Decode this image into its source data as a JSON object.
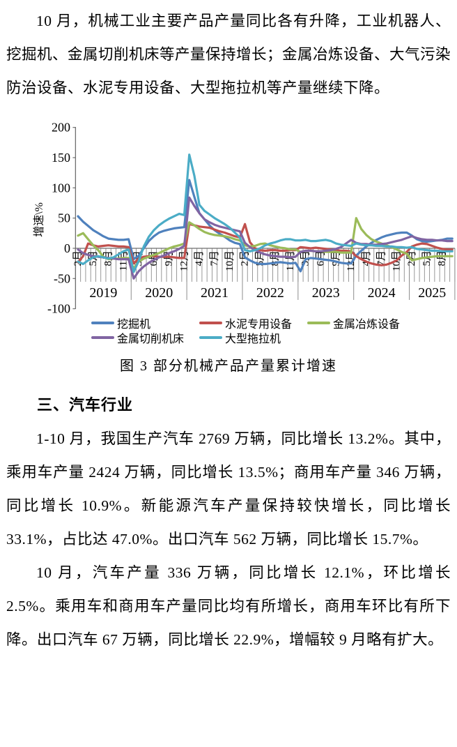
{
  "doc": {
    "paragraph1": "10 月，机械工业主要产品产量同比各有升降，工业机器人、挖掘机、金属切削机床等产量保持增长；金属冶炼设备、大气污染防治设备、水泥专用设备、大型拖拉机等产量继续下降。",
    "figure_caption": "图 3  部分机械产品产量累计增速",
    "section_heading": "三、汽车行业",
    "paragraph2": "1-10 月，我国生产汽车 2769 万辆，同比增长 13.2%。其中，乘用车产量 2424 万辆，同比增长 13.5%；商用车产量 346 万辆，同比增长 10.9%。新能源汽车产量保持较快增长，同比增长 33.1%，占比达 47.0%。出口汽车 562 万辆，同比增长 15.7%。",
    "paragraph3": "10 月，汽车产量 336 万辆，同比增长 12.1%，环比增长 2.5%。乘用车和商用车产量同比均有所增长，商用车环比有所下降。出口汽车 67 万辆，同比增长 22.9%，增幅较 9 月略有扩大。"
  },
  "chart_data": {
    "type": "line",
    "title": "图 3 部分机械产品产量累计增速",
    "ylabel": "增速\\%",
    "ylim": [
      -100,
      200
    ],
    "yticks": [
      200,
      150,
      100,
      50,
      0,
      -50,
      -100
    ],
    "grid": false,
    "legend_position": "bottom",
    "x_unit": "累计月度（每年2月–12月，2025年至10月）",
    "years": [
      {
        "label": "2019",
        "start": 0,
        "count": 11
      },
      {
        "label": "2020",
        "start": 11,
        "count": 11
      },
      {
        "label": "2021",
        "start": 22,
        "count": 11
      },
      {
        "label": "2022",
        "start": 33,
        "count": 11
      },
      {
        "label": "2023",
        "start": 44,
        "count": 11
      },
      {
        "label": "2024",
        "start": 55,
        "count": 11
      },
      {
        "label": "2025",
        "start": 66,
        "count": 9
      }
    ],
    "month_tick_labels": [
      {
        "index": 0,
        "label": "2月"
      },
      {
        "index": 3,
        "label": "5月"
      },
      {
        "index": 6,
        "label": "8月"
      },
      {
        "index": 9,
        "label": "11月"
      },
      {
        "index": 12,
        "label": "3月"
      },
      {
        "index": 15,
        "label": "6月"
      },
      {
        "index": 18,
        "label": "9月"
      },
      {
        "index": 21,
        "label": "12月"
      },
      {
        "index": 24,
        "label": "4月"
      },
      {
        "index": 27,
        "label": "7月"
      },
      {
        "index": 30,
        "label": "10月"
      },
      {
        "index": 33,
        "label": "2月"
      },
      {
        "index": 36,
        "label": "5月"
      },
      {
        "index": 39,
        "label": "8月"
      },
      {
        "index": 42,
        "label": "11月"
      },
      {
        "index": 45,
        "label": "3月"
      },
      {
        "index": 48,
        "label": "6月"
      },
      {
        "index": 51,
        "label": "9月"
      },
      {
        "index": 54,
        "label": "12月"
      },
      {
        "index": 57,
        "label": "4月"
      },
      {
        "index": 60,
        "label": "7月"
      },
      {
        "index": 63,
        "label": "10月"
      },
      {
        "index": 66,
        "label": "2月"
      },
      {
        "index": 69,
        "label": "5月"
      },
      {
        "index": 72,
        "label": "8月"
      }
    ],
    "series": [
      {
        "name": "挖掘机",
        "key": "excavator",
        "color": "#4F81BD",
        "values": [
          53,
          44,
          37,
          30,
          25,
          20,
          16,
          15,
          14,
          14,
          15,
          -18,
          -12,
          0,
          12,
          20,
          26,
          29,
          31,
          33,
          34,
          35,
          113,
          85,
          58,
          48,
          38,
          30,
          24,
          19,
          13,
          9,
          7,
          -15,
          -20,
          -24,
          -26,
          -26,
          -25,
          -24,
          -23,
          -24,
          -25,
          -24,
          -38,
          -18,
          -16,
          -17,
          -18,
          -19,
          -20,
          -22,
          -24,
          -25,
          -25,
          -12,
          -4,
          3,
          9,
          14,
          18,
          21,
          23,
          25,
          26,
          26,
          21,
          15,
          12,
          11,
          12,
          13,
          14,
          16,
          16
        ]
      },
      {
        "name": "水泥专用设备",
        "key": "cement-special-equipment",
        "color": "#C0504D",
        "values": [
          -23,
          -13,
          8,
          5,
          3,
          4,
          5,
          4,
          3,
          3,
          2,
          -25,
          -17,
          -14,
          -13,
          -13,
          -14,
          -14,
          -14,
          -15,
          -16,
          -16,
          40,
          38,
          36,
          35,
          34,
          31,
          28,
          26,
          23,
          20,
          18,
          40,
          10,
          0,
          -3,
          -4,
          -3,
          -3,
          -4,
          -4,
          -3,
          -3,
          2,
          1,
          0,
          1,
          0,
          -1,
          -2,
          -3,
          -4,
          -4,
          -5,
          -13,
          -18,
          -22,
          -25,
          -27,
          -28,
          -27,
          -24,
          -20,
          -12,
          -6,
          3,
          6,
          8,
          7,
          4,
          1,
          -1,
          -2,
          -2
        ]
      },
      {
        "name": "金属冶炼设备",
        "key": "metal-smelting-equipment",
        "color": "#9BBB59",
        "values": [
          21,
          25,
          15,
          5,
          -3,
          -14,
          -18,
          -17,
          -17,
          -16,
          -16,
          -33,
          -22,
          -17,
          -14,
          -11,
          -8,
          -4,
          0,
          3,
          5,
          8,
          43,
          38,
          32,
          27,
          24,
          22,
          21,
          20,
          18,
          15,
          13,
          5,
          3,
          4,
          7,
          8,
          5,
          3,
          1,
          0,
          -2,
          -2,
          -6,
          -4,
          -4,
          -5,
          -5,
          -6,
          -6,
          -6,
          -7,
          -7,
          -7,
          50,
          32,
          22,
          15,
          11,
          8,
          5,
          2,
          -2,
          -6,
          -9,
          -20,
          -18,
          -16,
          -15,
          -14,
          -13,
          -13,
          -13,
          -13
        ]
      },
      {
        "name": "金属切削机床",
        "key": "metal-cutting-machine-tools",
        "color": "#8064A2",
        "values": [
          -2,
          -8,
          -11,
          -13,
          -14,
          -15,
          -16,
          -17,
          -18,
          -18,
          -18,
          -50,
          -38,
          -30,
          -24,
          -19,
          -15,
          -12,
          -8,
          -5,
          -1,
          4,
          84,
          70,
          58,
          48,
          43,
          39,
          36,
          34,
          32,
          30,
          28,
          9,
          2,
          -3,
          -7,
          -10,
          -12,
          -13,
          -14,
          -14,
          -15,
          -14,
          -6,
          -4,
          -4,
          -5,
          -5,
          -4,
          -3,
          -1,
          2,
          8,
          14,
          9,
          7,
          7,
          6,
          6,
          7,
          8,
          10,
          12,
          14,
          17,
          20,
          17,
          15,
          14,
          14,
          13,
          13,
          12,
          12
        ]
      },
      {
        "name": "大型拖拉机",
        "key": "large-tractor",
        "color": "#4BACC6",
        "values": [
          -22,
          -26,
          -20,
          -15,
          -13,
          -15,
          -17,
          -15,
          -10,
          -5,
          -2,
          -39,
          -21,
          3,
          19,
          30,
          38,
          44,
          49,
          53,
          57,
          55,
          155,
          120,
          72,
          62,
          56,
          50,
          45,
          40,
          34,
          26,
          18,
          -3,
          -5,
          -3,
          0,
          5,
          8,
          10,
          13,
          15,
          15,
          13,
          13,
          14,
          12,
          12,
          13,
          14,
          12,
          8,
          6,
          5,
          4,
          8,
          6,
          5,
          5,
          4,
          4,
          3,
          3,
          2,
          2,
          1,
          2,
          -1,
          -2,
          -3,
          -4,
          -4,
          -5,
          -5,
          -5
        ]
      }
    ]
  }
}
